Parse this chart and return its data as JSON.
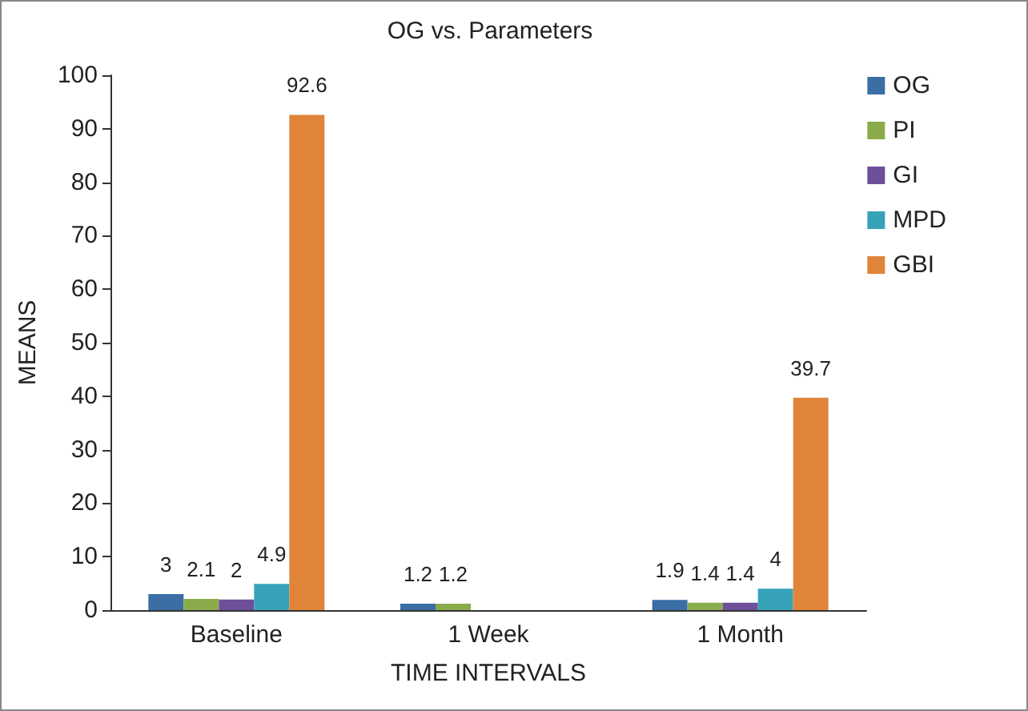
{
  "chart_data": {
    "type": "bar",
    "title": "OG vs. Parameters",
    "xlabel": "TIME INTERVALS",
    "ylabel": "MEANS",
    "categories": [
      "Baseline",
      "1 Week",
      "1 Month"
    ],
    "series": [
      {
        "name": "OG",
        "color": "#3a6ea5",
        "values": [
          3,
          1.2,
          1.9
        ]
      },
      {
        "name": "PI",
        "color": "#8aab4a",
        "values": [
          2.1,
          1.2,
          1.4
        ]
      },
      {
        "name": "GI",
        "color": "#6e4f9a",
        "values": [
          2,
          null,
          1.4
        ]
      },
      {
        "name": "MPD",
        "color": "#36a2b8",
        "values": [
          4.9,
          null,
          4
        ]
      },
      {
        "name": "GBI",
        "color": "#e0843a",
        "values": [
          92.6,
          null,
          39.7
        ]
      }
    ],
    "ylim": [
      0,
      100
    ],
    "yticks": [
      0,
      10,
      20,
      30,
      40,
      50,
      60,
      70,
      80,
      90,
      100
    ],
    "grid": false,
    "legend": "top right",
    "data_labels": true
  }
}
